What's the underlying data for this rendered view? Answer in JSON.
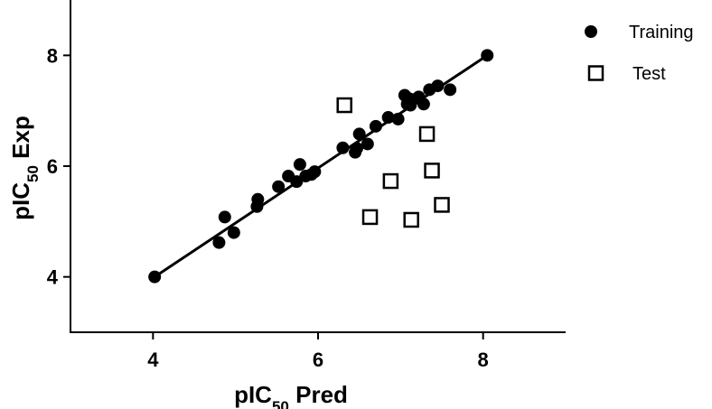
{
  "chart_data": {
    "type": "scatter",
    "title": "",
    "xlabel": {
      "prefix": "pIC",
      "sub": "50",
      "suffix": " Pred"
    },
    "ylabel": {
      "prefix": "pIC",
      "sub": "50",
      "suffix": " Exp"
    },
    "xlim": [
      3,
      9
    ],
    "ylim": [
      3,
      9
    ],
    "xticks": [
      4,
      6,
      8
    ],
    "yticks": [
      4,
      6,
      8
    ],
    "grid": false,
    "legend": "top-right",
    "series": [
      {
        "name": "Training",
        "marker": "filled-circle",
        "color": "#000000",
        "x": [
          4.02,
          4.8,
          4.87,
          4.98,
          5.26,
          5.27,
          5.52,
          5.64,
          5.74,
          5.78,
          5.85,
          5.92,
          5.96,
          6.3,
          6.45,
          6.47,
          6.5,
          6.6,
          6.7,
          6.85,
          6.97,
          7.05,
          7.08,
          7.1,
          7.12,
          7.15,
          7.22,
          7.28,
          7.35,
          7.45,
          7.6,
          8.05
        ],
        "y": [
          4.0,
          4.62,
          5.08,
          4.8,
          5.27,
          5.4,
          5.63,
          5.82,
          5.72,
          6.03,
          5.82,
          5.85,
          5.9,
          6.33,
          6.25,
          6.32,
          6.58,
          6.4,
          6.72,
          6.88,
          6.85,
          7.28,
          7.12,
          7.22,
          7.1,
          7.2,
          7.25,
          7.12,
          7.38,
          7.45,
          7.38,
          8.0
        ]
      },
      {
        "name": "Test",
        "marker": "open-square",
        "color": "#000000",
        "x": [
          6.32,
          6.63,
          6.88,
          7.13,
          7.32,
          7.38,
          7.5
        ],
        "y": [
          7.1,
          5.08,
          5.73,
          5.03,
          6.58,
          5.92,
          5.3
        ]
      }
    ],
    "regression_line": {
      "x": [
        4.02,
        8.05
      ],
      "y": [
        4.0,
        8.0
      ]
    }
  }
}
